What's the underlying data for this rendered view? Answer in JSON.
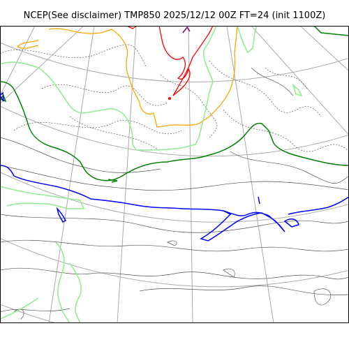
{
  "title": "NCEP(See disclaimer) TMP850 2025/12/12 00Z FT=24 (init 1100Z)",
  "map": {
    "field": "TMP850",
    "projection": "polar stereographic",
    "graticule": true,
    "colors": {
      "graticule": "#aaaaaa",
      "coastline": "#555555",
      "isotherm_dotted": "#555555",
      "warm_red": "#ff0000",
      "warm_orange": "#ffa500",
      "light_green": "#90ee90",
      "dark_green": "#008000",
      "cold_blue": "#0000ff",
      "purple": "#800080"
    }
  }
}
